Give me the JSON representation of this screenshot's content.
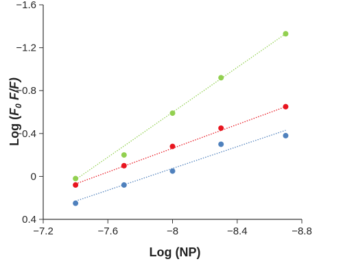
{
  "chart_data": {
    "type": "scatter",
    "x_label": "Log (NP)",
    "y_label_parts": [
      "Log (",
      "F",
      "0",
      " F/F)"
    ],
    "x": [
      -7.4,
      -7.7,
      -8,
      -8.3,
      -8.7
    ],
    "series": [
      {
        "color": "#92d050",
        "values": [
          0.02,
          -0.2,
          -0.59,
          -0.92,
          -1.33
        ],
        "trend": [
          0.03,
          -1.33
        ]
      },
      {
        "color": "#e8151f",
        "values": [
          0.08,
          -0.1,
          -0.28,
          -0.45,
          -0.65
        ],
        "trend": [
          0.07,
          -0.65
        ]
      },
      {
        "color": "#4f81bd",
        "values": [
          0.25,
          0.08,
          -0.05,
          -0.3,
          -0.38
        ],
        "trend": [
          0.23,
          -0.43
        ]
      }
    ],
    "xlim": [
      -7.2,
      -8.8
    ],
    "xticks": [
      {
        "value": -7.2,
        "label": "−7.2"
      },
      {
        "value": -7.6,
        "label": "−7.6"
      },
      {
        "value": -8,
        "label": "−8"
      },
      {
        "value": -8.4,
        "label": "−8.4"
      },
      {
        "value": -8.8,
        "label": "−8.8"
      }
    ],
    "ylim": [
      0.4,
      -1.6
    ],
    "yticks": [
      0.4,
      0,
      {
        "value": -0.4,
        "label": "−0.4"
      },
      {
        "value": -0.8,
        "label": "−0.8"
      },
      {
        "value": -1.2,
        "label": "−1.2"
      },
      {
        "value": -1.6,
        "label": "−1.6"
      }
    ]
  }
}
